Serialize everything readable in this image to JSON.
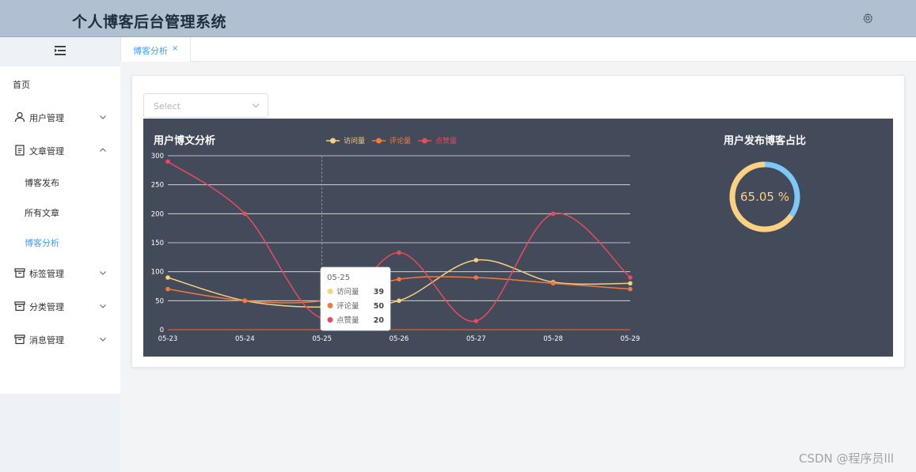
{
  "header": {
    "title": "个人博客后台管理系统",
    "settings_icon": "gear-icon"
  },
  "tabs": [
    {
      "label": "博客分析",
      "close": "×"
    }
  ],
  "sidebar": {
    "collapse_icon": "menu-fold-icon",
    "items": [
      {
        "label": "首页",
        "icon": ""
      },
      {
        "label": "用户管理",
        "icon": "user-icon",
        "chevron": "down"
      },
      {
        "label": "文章管理",
        "icon": "document-icon",
        "chevron": "up"
      },
      {
        "label": "博客发布",
        "sub": true
      },
      {
        "label": "所有文章",
        "sub": true
      },
      {
        "label": "博客分析",
        "sub": true,
        "active": true
      },
      {
        "label": "标签管理",
        "icon": "box-icon",
        "chevron": "down"
      },
      {
        "label": "分类管理",
        "icon": "box-icon",
        "chevron": "down"
      },
      {
        "label": "消息管理",
        "icon": "box-icon",
        "chevron": "down"
      }
    ]
  },
  "filter": {
    "placeholder": "Select"
  },
  "colors": {
    "visits": "#f7d17e",
    "comments": "#f07b3f",
    "likes": "#e84a5f",
    "ring_main": "#ffd07e",
    "ring_rest": "#7cc8f8",
    "panel_bg": "#434a5a"
  },
  "chart_data": [
    {
      "type": "line",
      "title": "用户博文分析",
      "categories": [
        "05-23",
        "05-24",
        "05-25",
        "05-26",
        "05-27",
        "05-28",
        "05-29"
      ],
      "ylim": [
        0,
        300
      ],
      "yticks": [
        0,
        50,
        100,
        150,
        200,
        250,
        300
      ],
      "grid": true,
      "legend": "top",
      "series": [
        {
          "name": "访问量",
          "values": [
            90,
            50,
            39,
            50,
            120,
            82,
            80
          ]
        },
        {
          "name": "评论量",
          "values": [
            70,
            50,
            50,
            87,
            90,
            80,
            70
          ]
        },
        {
          "name": "点赞量",
          "values": [
            290,
            200,
            20,
            133,
            15,
            200,
            90
          ]
        }
      ],
      "tooltip": {
        "category": "05-25",
        "rows": [
          {
            "name": "访问量",
            "value": 39
          },
          {
            "name": "评论量",
            "value": 50
          },
          {
            "name": "点赞量",
            "value": 20
          }
        ]
      }
    },
    {
      "type": "pie",
      "title": "用户发布博客占比",
      "value": 65.05,
      "label": "65.05 %"
    }
  ],
  "watermark": "CSDN @程序员lll"
}
